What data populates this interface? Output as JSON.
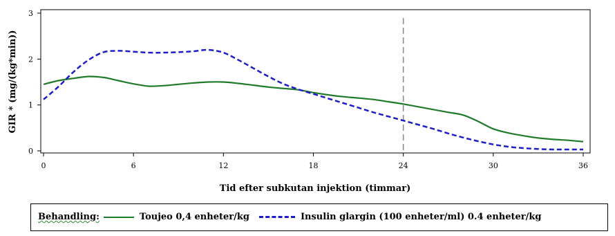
{
  "chart_data": {
    "type": "line",
    "title": "",
    "xlabel": "Tid efter subkutan injektion (timmar)",
    "ylabel": "GIR * (mg/(kg*min))",
    "xlim": [
      0,
      36
    ],
    "ylim": [
      0,
      3
    ],
    "xticks": [
      0,
      6,
      12,
      18,
      24,
      30,
      36
    ],
    "yticks": [
      0,
      1,
      2,
      3
    ],
    "grid": false,
    "vline": 24,
    "legend_position": "bottom",
    "legend_title": "Behandling:",
    "series": [
      {
        "name": "Toujeo 0,4 enheter/kg",
        "style": "solid",
        "color": "#1f7a2a",
        "x": [
          0,
          1,
          2,
          3,
          4,
          5,
          6,
          7,
          8,
          9,
          10,
          11,
          12,
          13,
          14,
          15,
          16,
          17,
          18,
          19,
          20,
          21,
          22,
          23,
          24,
          25,
          26,
          27,
          28,
          29,
          30,
          31,
          32,
          33,
          34,
          35,
          36
        ],
        "y": [
          1.45,
          1.53,
          1.58,
          1.62,
          1.6,
          1.53,
          1.46,
          1.41,
          1.42,
          1.45,
          1.48,
          1.5,
          1.5,
          1.47,
          1.43,
          1.39,
          1.36,
          1.33,
          1.27,
          1.22,
          1.18,
          1.15,
          1.12,
          1.07,
          1.02,
          0.96,
          0.9,
          0.84,
          0.78,
          0.64,
          0.48,
          0.39,
          0.33,
          0.28,
          0.25,
          0.23,
          0.2
        ]
      },
      {
        "name": "Insulin glargin (100 enheter/ml) 0.4 enheter/kg",
        "style": "dashed",
        "color": "#1e1ec8",
        "x": [
          0,
          1,
          2,
          3,
          4,
          5,
          6,
          7,
          8,
          9,
          10,
          11,
          12,
          13,
          14,
          15,
          16,
          17,
          18,
          19,
          20,
          21,
          22,
          23,
          24,
          25,
          26,
          27,
          28,
          29,
          30,
          31,
          32,
          33,
          34,
          35,
          36
        ],
        "y": [
          1.12,
          1.4,
          1.72,
          1.98,
          2.15,
          2.18,
          2.16,
          2.14,
          2.14,
          2.15,
          2.17,
          2.2,
          2.14,
          1.98,
          1.8,
          1.62,
          1.46,
          1.34,
          1.24,
          1.14,
          1.04,
          0.94,
          0.84,
          0.75,
          0.66,
          0.57,
          0.48,
          0.38,
          0.29,
          0.21,
          0.14,
          0.09,
          0.06,
          0.04,
          0.03,
          0.03,
          0.03
        ]
      }
    ]
  }
}
